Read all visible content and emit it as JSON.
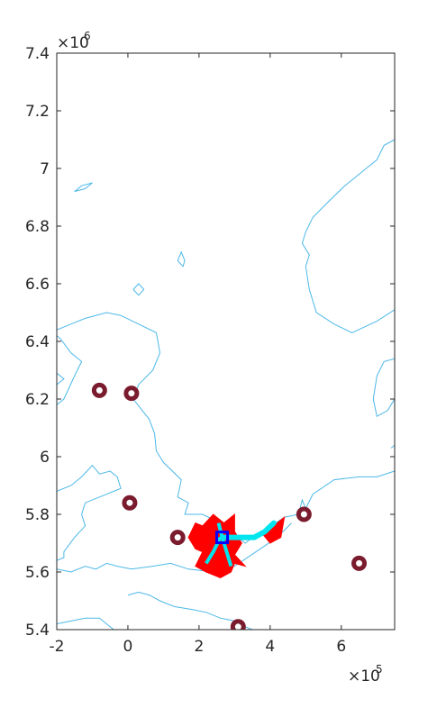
{
  "chart_data": {
    "type": "scatter",
    "x_scale_label": "×10",
    "x_scale_exp": "5",
    "y_scale_label": "×10",
    "y_scale_exp": "6",
    "xlim": [
      -2,
      7.5
    ],
    "ylim": [
      5.4,
      7.4
    ],
    "x_ticks": [
      {
        "value": -2,
        "label": "-2"
      },
      {
        "value": 0,
        "label": "0"
      },
      {
        "value": 2,
        "label": "2"
      },
      {
        "value": 4,
        "label": "4"
      },
      {
        "value": 6,
        "label": "6"
      }
    ],
    "y_ticks": [
      {
        "value": 5.4,
        "label": "5.4"
      },
      {
        "value": 5.6,
        "label": "5.6"
      },
      {
        "value": 5.8,
        "label": "5.8"
      },
      {
        "value": 6.0,
        "label": "6"
      },
      {
        "value": 6.2,
        "label": "6.2"
      },
      {
        "value": 6.4,
        "label": "6.4"
      },
      {
        "value": 6.6,
        "label": "6.6"
      },
      {
        "value": 6.8,
        "label": "6.8"
      },
      {
        "value": 7.0,
        "label": "7"
      },
      {
        "value": 7.2,
        "label": "7.2"
      },
      {
        "value": 7.4,
        "label": "7.4"
      }
    ],
    "grid": false,
    "colors": {
      "coastline": "#4db8e8",
      "site_marker": "#7a1b2e",
      "impact_area": "#ff0000",
      "track": "#00e5ee",
      "origin_marker": "#0000ff",
      "axes": "#262626"
    },
    "coastlines": [
      [
        [
          -2,
          6.44
        ],
        [
          -1.6,
          6.46
        ],
        [
          -1.2,
          6.48
        ],
        [
          -0.6,
          6.5
        ],
        [
          -0.2,
          6.49
        ],
        [
          0.3,
          6.46
        ],
        [
          0.8,
          6.43
        ],
        [
          0.9,
          6.36
        ],
        [
          0.7,
          6.3
        ],
        [
          0.3,
          6.25
        ],
        [
          0.15,
          6.2
        ],
        [
          0.6,
          6.13
        ],
        [
          0.75,
          6.08
        ],
        [
          0.8,
          6.02
        ],
        [
          1.0,
          5.98
        ],
        [
          1.5,
          5.92
        ],
        [
          1.4,
          5.86
        ],
        [
          1.7,
          5.84
        ],
        [
          1.6,
          5.8
        ],
        [
          2.1,
          5.8
        ],
        [
          2.6,
          5.77
        ],
        [
          3.1,
          5.72
        ],
        [
          3.3,
          5.7
        ],
        [
          3.6,
          5.73
        ],
        [
          3.9,
          5.75
        ],
        [
          4.4,
          5.79
        ],
        [
          4.8,
          5.8
        ],
        [
          4.9,
          5.85
        ],
        [
          5.0,
          5.82
        ],
        [
          5.2,
          5.87
        ],
        [
          5.8,
          5.92
        ],
        [
          6.5,
          5.93
        ],
        [
          7.0,
          5.93
        ],
        [
          7.5,
          5.95
        ]
      ],
      [
        [
          -2,
          6.18
        ],
        [
          -1.8,
          6.2
        ],
        [
          -1.5,
          6.28
        ],
        [
          -1.3,
          6.33
        ],
        [
          -1.6,
          6.36
        ],
        [
          -1.9,
          6.41
        ],
        [
          -2,
          6.42
        ]
      ],
      [
        [
          -2,
          5.88
        ],
        [
          -1.6,
          5.9
        ],
        [
          -1.3,
          5.93
        ],
        [
          -1.0,
          5.97
        ],
        [
          -0.8,
          5.94
        ],
        [
          -0.5,
          5.95
        ],
        [
          -0.3,
          5.93
        ],
        [
          -0.2,
          5.89
        ],
        [
          -0.8,
          5.86
        ],
        [
          -1.2,
          5.84
        ],
        [
          -1.3,
          5.8
        ],
        [
          -1.2,
          5.76
        ],
        [
          -1.5,
          5.72
        ],
        [
          -1.8,
          5.67
        ],
        [
          -1.8,
          5.65
        ],
        [
          -2,
          5.64
        ]
      ],
      [
        [
          -2,
          5.61
        ],
        [
          -1.6,
          5.6
        ],
        [
          -1.2,
          5.62
        ],
        [
          -0.9,
          5.61
        ],
        [
          -0.6,
          5.63
        ],
        [
          -0.3,
          5.62
        ],
        [
          0.1,
          5.61
        ],
        [
          0.7,
          5.62
        ],
        [
          1.2,
          5.63
        ],
        [
          1.7,
          5.61
        ],
        [
          2.4,
          5.6
        ],
        [
          3.0,
          5.62
        ],
        [
          3.6,
          5.67
        ],
        [
          4.2,
          5.72
        ],
        [
          4.6,
          5.77
        ]
      ],
      [
        [
          -2,
          5.42
        ],
        [
          -1.6,
          5.43
        ],
        [
          -1.2,
          5.44
        ],
        [
          -0.8,
          5.44
        ],
        [
          -0.6,
          5.42
        ],
        [
          -0.4,
          5.4
        ]
      ],
      [
        [
          0.0,
          5.52
        ],
        [
          0.3,
          5.53
        ],
        [
          0.6,
          5.52
        ],
        [
          0.9,
          5.5
        ],
        [
          1.3,
          5.48
        ],
        [
          1.8,
          5.47
        ],
        [
          2.2,
          5.46
        ],
        [
          2.6,
          5.44
        ],
        [
          3.0,
          5.43
        ],
        [
          3.3,
          5.41
        ],
        [
          3.5,
          5.4
        ]
      ],
      [
        [
          -1.5,
          6.92
        ],
        [
          -1.3,
          6.94
        ],
        [
          -1.0,
          6.95
        ],
        [
          -1.2,
          6.93
        ],
        [
          -1.5,
          6.92
        ]
      ],
      [
        [
          1.4,
          6.68
        ],
        [
          1.5,
          6.71
        ],
        [
          1.6,
          6.68
        ],
        [
          1.55,
          6.66
        ],
        [
          1.4,
          6.68
        ]
      ],
      [
        [
          0.15,
          6.58
        ],
        [
          0.3,
          6.6
        ],
        [
          0.45,
          6.58
        ],
        [
          0.3,
          6.56
        ],
        [
          0.15,
          6.58
        ]
      ],
      [
        [
          7.5,
          7.1
        ],
        [
          7.2,
          7.08
        ],
        [
          7.0,
          7.03
        ],
        [
          6.7,
          7.0
        ],
        [
          6.4,
          6.97
        ],
        [
          6.1,
          6.94
        ],
        [
          5.6,
          6.88
        ],
        [
          5.2,
          6.83
        ],
        [
          5.0,
          6.78
        ],
        [
          4.9,
          6.74
        ],
        [
          5.1,
          6.7
        ],
        [
          5.0,
          6.66
        ],
        [
          5.1,
          6.58
        ],
        [
          5.3,
          6.5
        ],
        [
          5.8,
          6.46
        ],
        [
          6.3,
          6.43
        ],
        [
          7.0,
          6.47
        ],
        [
          7.5,
          6.51
        ]
      ],
      [
        [
          7.5,
          6.34
        ],
        [
          7.2,
          6.33
        ],
        [
          7.0,
          6.28
        ],
        [
          6.9,
          6.2
        ],
        [
          7.0,
          6.14
        ],
        [
          7.3,
          6.16
        ],
        [
          7.5,
          6.2
        ]
      ],
      [
        [
          -2,
          6.25
        ],
        [
          -1.8,
          6.27
        ],
        [
          -2,
          6.29
        ]
      ],
      [
        [
          7.4,
          6.03
        ],
        [
          7.5,
          6.04
        ]
      ]
    ],
    "impact_areas": [
      [
        [
          1.7,
          5.72
        ],
        [
          1.9,
          5.68
        ],
        [
          2.1,
          5.67
        ],
        [
          1.9,
          5.62
        ],
        [
          2.2,
          5.6
        ],
        [
          2.6,
          5.58
        ],
        [
          2.9,
          5.6
        ],
        [
          3.0,
          5.63
        ],
        [
          3.3,
          5.62
        ],
        [
          3.0,
          5.66
        ],
        [
          3.2,
          5.7
        ],
        [
          3.0,
          5.74
        ],
        [
          3.0,
          5.8
        ],
        [
          2.7,
          5.77
        ],
        [
          2.4,
          5.8
        ],
        [
          2.1,
          5.76
        ],
        [
          1.9,
          5.77
        ],
        [
          1.7,
          5.72
        ]
      ],
      [
        [
          3.8,
          5.73
        ],
        [
          4.1,
          5.76
        ],
        [
          4.4,
          5.79
        ],
        [
          4.3,
          5.72
        ],
        [
          4.0,
          5.7
        ],
        [
          3.8,
          5.73
        ]
      ]
    ],
    "track": [
      [
        2.65,
        5.72
      ],
      [
        3.1,
        5.72
      ],
      [
        3.55,
        5.72
      ],
      [
        3.85,
        5.74
      ],
      [
        4.1,
        5.77
      ]
    ],
    "track_branches": [
      [
        [
          2.6,
          5.72
        ],
        [
          2.4,
          5.67
        ],
        [
          2.2,
          5.63
        ]
      ],
      [
        [
          2.65,
          5.72
        ],
        [
          2.8,
          5.66
        ],
        [
          2.9,
          5.62
        ]
      ],
      [
        [
          2.65,
          5.72
        ],
        [
          2.55,
          5.77
        ]
      ]
    ],
    "origin": {
      "x": 2.65,
      "y": 5.72
    },
    "sites": [
      {
        "x": -0.8,
        "y": 6.23
      },
      {
        "x": 0.1,
        "y": 6.22
      },
      {
        "x": 0.05,
        "y": 5.84
      },
      {
        "x": 1.4,
        "y": 5.72
      },
      {
        "x": 4.95,
        "y": 5.8
      },
      {
        "x": 6.5,
        "y": 5.63
      },
      {
        "x": 3.1,
        "y": 5.41
      }
    ]
  }
}
